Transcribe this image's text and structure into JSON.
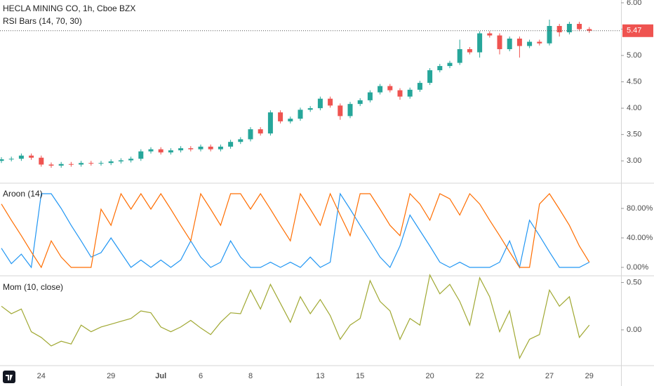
{
  "chart_data": [
    {
      "type": "candlestick",
      "title": "HECLA MINING CO, 1h, Cboe BZX",
      "subtitle": "RSI Bars (14, 70, 30)",
      "categories": [
        null,
        null,
        null,
        null,
        "24",
        null,
        null,
        null,
        null,
        null,
        null,
        "29",
        null,
        null,
        null,
        null,
        "Jul",
        null,
        null,
        null,
        "6",
        null,
        null,
        null,
        null,
        "8",
        null,
        null,
        null,
        null,
        null,
        null,
        "13",
        null,
        null,
        null,
        "15",
        null,
        null,
        null,
        null,
        null,
        null,
        "20",
        null,
        null,
        null,
        null,
        "22",
        null,
        null,
        null,
        null,
        null,
        null,
        "27",
        null,
        null,
        null,
        "29"
      ],
      "open": [
        3.0,
        3.03,
        3.04,
        3.1,
        3.06,
        2.93,
        2.91,
        2.94,
        2.93,
        2.96,
        2.95,
        2.96,
        2.99,
        3.01,
        3.04,
        3.18,
        3.22,
        3.16,
        3.2,
        3.24,
        3.22,
        3.27,
        3.22,
        3.27,
        3.36,
        3.41,
        3.6,
        3.52,
        3.92,
        3.75,
        3.8,
        3.97,
        4.0,
        4.18,
        4.05,
        3.85,
        4.08,
        4.15,
        4.3,
        4.42,
        4.34,
        4.22,
        4.35,
        4.48,
        4.72,
        4.8,
        4.86,
        5.12,
        5.06,
        5.42,
        5.38,
        5.12,
        5.32,
        5.18,
        5.26,
        5.23,
        5.56,
        5.44,
        5.6,
        5.5
      ],
      "high": [
        3.07,
        3.08,
        3.14,
        3.14,
        3.1,
        2.97,
        2.98,
        2.98,
        3.0,
        3.0,
        3.0,
        3.03,
        3.05,
        3.08,
        3.22,
        3.26,
        3.26,
        3.24,
        3.28,
        3.28,
        3.31,
        3.31,
        3.31,
        3.4,
        3.45,
        3.64,
        3.64,
        3.96,
        3.96,
        3.84,
        4.01,
        4.04,
        4.22,
        4.22,
        4.09,
        4.12,
        4.19,
        4.34,
        4.46,
        4.46,
        4.38,
        4.39,
        4.52,
        4.76,
        4.84,
        4.9,
        5.3,
        5.16,
        5.46,
        5.46,
        5.42,
        5.36,
        5.36,
        5.3,
        5.3,
        5.68,
        5.6,
        5.64,
        5.64,
        5.54
      ],
      "low": [
        2.96,
        2.99,
        3.0,
        3.02,
        2.89,
        2.87,
        2.87,
        2.89,
        2.89,
        2.91,
        2.91,
        2.92,
        2.95,
        2.97,
        3.0,
        3.14,
        3.12,
        3.12,
        3.16,
        3.18,
        3.18,
        3.18,
        3.18,
        3.23,
        3.32,
        3.37,
        3.48,
        3.48,
        3.71,
        3.71,
        3.76,
        3.93,
        3.96,
        4.01,
        3.78,
        3.81,
        4.04,
        4.11,
        4.26,
        4.3,
        4.16,
        4.18,
        4.31,
        4.44,
        4.68,
        4.76,
        4.82,
        5.02,
        4.96,
        5.34,
        5.02,
        5.08,
        4.96,
        5.14,
        5.19,
        5.19,
        5.36,
        5.4,
        5.46,
        5.43
      ],
      "close": [
        3.03,
        3.04,
        3.1,
        3.06,
        2.93,
        2.91,
        2.94,
        2.93,
        2.96,
        2.95,
        2.96,
        2.99,
        3.01,
        3.04,
        3.18,
        3.22,
        3.16,
        3.2,
        3.24,
        3.22,
        3.27,
        3.22,
        3.27,
        3.36,
        3.41,
        3.6,
        3.52,
        3.92,
        3.75,
        3.8,
        3.97,
        4.0,
        4.18,
        4.05,
        3.85,
        4.08,
        4.15,
        4.3,
        4.42,
        4.34,
        4.22,
        4.35,
        4.48,
        4.72,
        4.8,
        4.86,
        5.12,
        5.06,
        5.42,
        5.38,
        5.12,
        5.32,
        5.18,
        5.26,
        5.23,
        5.56,
        5.44,
        5.6,
        5.5,
        5.47
      ],
      "up_color": "#26a69a",
      "down_color": "#ef5350",
      "last_value": 5.47,
      "ylim": [
        2.59,
        6.053
      ],
      "yticks": [
        {
          "value": 3,
          "label": "3.00"
        },
        {
          "value": 3.5,
          "label": "3.50"
        },
        {
          "value": 4,
          "label": "4.00"
        },
        {
          "value": 4.5,
          "label": "4.50"
        },
        {
          "value": 5,
          "label": "5.00"
        },
        {
          "value": 5.5,
          "label": "5.50"
        },
        {
          "value": 6,
          "label": "6.00"
        }
      ]
    },
    {
      "type": "line",
      "title": "Aroon (14)",
      "series": [
        {
          "color": "#2196f3",
          "values": [
            26,
            5,
            18,
            0,
            100,
            100,
            80,
            57,
            36,
            14,
            20,
            40,
            20,
            0,
            10,
            0,
            10,
            0,
            10,
            36,
            14,
            0,
            7,
            36,
            14,
            0,
            0,
            7,
            0,
            7,
            0,
            14,
            0,
            7,
            100,
            79,
            57,
            36,
            14,
            0,
            29,
            71,
            50,
            29,
            7,
            0,
            7,
            0,
            0,
            0,
            7,
            36,
            0,
            64,
            43,
            21,
            0,
            0,
            0,
            7
          ]
        },
        {
          "color": "#ff6d00",
          "values": [
            86,
            64,
            43,
            21,
            0,
            36,
            14,
            0,
            0,
            0,
            79,
            57,
            100,
            79,
            100,
            79,
            100,
            79,
            57,
            36,
            100,
            79,
            57,
            100,
            100,
            79,
            100,
            79,
            57,
            36,
            100,
            79,
            57,
            100,
            71,
            43,
            100,
            100,
            79,
            57,
            43,
            100,
            86,
            64,
            100,
            93,
            71,
            100,
            86,
            64,
            43,
            21,
            0,
            0,
            86,
            100,
            79,
            57,
            29,
            7
          ]
        }
      ],
      "ylim": [
        -10.5,
        113.3
      ],
      "yticks": [
        {
          "value": 0,
          "label": "0.00%"
        },
        {
          "value": 40,
          "label": "40.00%"
        },
        {
          "value": 80,
          "label": "80.00%"
        }
      ]
    },
    {
      "type": "line",
      "title": "Mom (10, close)",
      "series": [
        {
          "color": "#a0a832",
          "values": [
            0.25,
            0.17,
            0.22,
            -0.02,
            -0.08,
            -0.17,
            -0.12,
            -0.15,
            0.05,
            -0.02,
            0.03,
            0.06,
            0.09,
            0.12,
            0.2,
            0.18,
            0.03,
            -0.02,
            0.03,
            0.1,
            0.02,
            -0.05,
            0.08,
            0.18,
            0.17,
            0.42,
            0.22,
            0.48,
            0.28,
            0.08,
            0.35,
            0.17,
            0.32,
            0.15,
            -0.1,
            0.05,
            0.12,
            0.52,
            0.3,
            0.2,
            -0.1,
            0.12,
            0.05,
            0.58,
            0.38,
            0.48,
            0.3,
            0.05,
            0.55,
            0.35,
            -0.02,
            0.2,
            -0.3,
            -0.1,
            -0.05,
            0.42,
            0.25,
            0.35,
            -0.08,
            0.05
          ]
        }
      ],
      "ylim": [
        -0.371,
        0.556
      ],
      "yticks": [
        {
          "value": 0,
          "label": "0.00"
        },
        {
          "value": 0.5,
          "label": "0.50"
        }
      ]
    }
  ]
}
